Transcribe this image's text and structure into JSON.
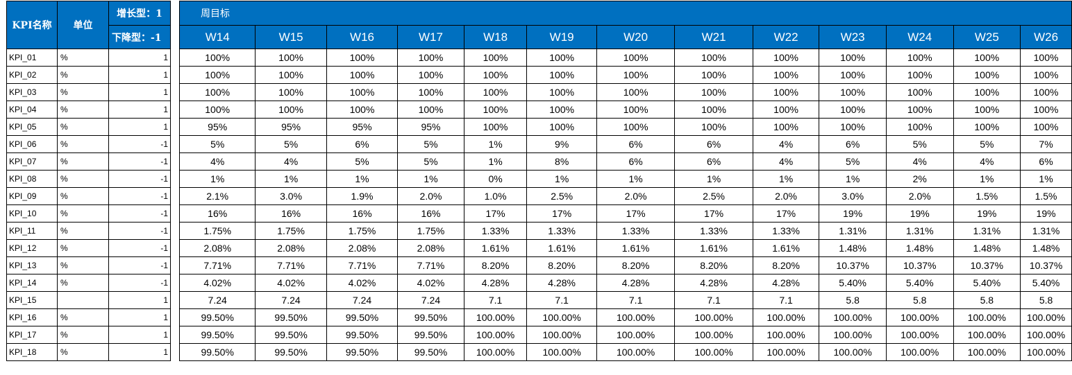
{
  "left_headers": {
    "kpi_name": "KPI名称",
    "unit": "单位",
    "type_up": "增长型：1",
    "type_down": "下降型：-1"
  },
  "weekly_target": {
    "group_title": "周目标",
    "weeks": [
      "W14",
      "W15",
      "W16",
      "W17",
      "W18",
      "W19",
      "W20",
      "W21",
      "W22",
      "W23",
      "W24",
      "W25",
      "W26"
    ]
  },
  "rows": [
    {
      "name": "KPI_01",
      "unit": "%",
      "type": "1",
      "values": [
        "100%",
        "100%",
        "100%",
        "100%",
        "100%",
        "100%",
        "100%",
        "100%",
        "100%",
        "100%",
        "100%",
        "100%",
        "100%"
      ]
    },
    {
      "name": "KPI_02",
      "unit": "%",
      "type": "1",
      "values": [
        "100%",
        "100%",
        "100%",
        "100%",
        "100%",
        "100%",
        "100%",
        "100%",
        "100%",
        "100%",
        "100%",
        "100%",
        "100%"
      ]
    },
    {
      "name": "KPI_03",
      "unit": "%",
      "type": "1",
      "values": [
        "100%",
        "100%",
        "100%",
        "100%",
        "100%",
        "100%",
        "100%",
        "100%",
        "100%",
        "100%",
        "100%",
        "100%",
        "100%"
      ]
    },
    {
      "name": "KPI_04",
      "unit": "%",
      "type": "1",
      "values": [
        "100%",
        "100%",
        "100%",
        "100%",
        "100%",
        "100%",
        "100%",
        "100%",
        "100%",
        "100%",
        "100%",
        "100%",
        "100%"
      ]
    },
    {
      "name": "KPI_05",
      "unit": "%",
      "type": "1",
      "values": [
        "95%",
        "95%",
        "95%",
        "95%",
        "100%",
        "100%",
        "100%",
        "100%",
        "100%",
        "100%",
        "100%",
        "100%",
        "100%"
      ]
    },
    {
      "name": "KPI_06",
      "unit": "%",
      "type": "-1",
      "values": [
        "5%",
        "5%",
        "6%",
        "5%",
        "1%",
        "9%",
        "6%",
        "6%",
        "4%",
        "6%",
        "5%",
        "5%",
        "7%"
      ]
    },
    {
      "name": "KPI_07",
      "unit": "%",
      "type": "-1",
      "values": [
        "4%",
        "4%",
        "5%",
        "5%",
        "1%",
        "8%",
        "6%",
        "6%",
        "4%",
        "5%",
        "4%",
        "4%",
        "6%"
      ]
    },
    {
      "name": "KPI_08",
      "unit": "%",
      "type": "-1",
      "values": [
        "1%",
        "1%",
        "1%",
        "1%",
        "0%",
        "1%",
        "1%",
        "1%",
        "1%",
        "1%",
        "2%",
        "1%",
        "1%"
      ]
    },
    {
      "name": "KPI_09",
      "unit": "%",
      "type": "-1",
      "values": [
        "2.1%",
        "3.0%",
        "1.9%",
        "2.0%",
        "1.0%",
        "2.5%",
        "2.0%",
        "2.5%",
        "2.0%",
        "3.0%",
        "2.0%",
        "1.5%",
        "1.5%"
      ]
    },
    {
      "name": "KPI_10",
      "unit": "%",
      "type": "-1",
      "values": [
        "16%",
        "16%",
        "16%",
        "16%",
        "17%",
        "17%",
        "17%",
        "17%",
        "17%",
        "19%",
        "19%",
        "19%",
        "19%"
      ]
    },
    {
      "name": "KPI_11",
      "unit": "%",
      "type": "-1",
      "values": [
        "1.75%",
        "1.75%",
        "1.75%",
        "1.75%",
        "1.33%",
        "1.33%",
        "1.33%",
        "1.33%",
        "1.33%",
        "1.31%",
        "1.31%",
        "1.31%",
        "1.31%"
      ]
    },
    {
      "name": "KPI_12",
      "unit": "%",
      "type": "-1",
      "values": [
        "2.08%",
        "2.08%",
        "2.08%",
        "2.08%",
        "1.61%",
        "1.61%",
        "1.61%",
        "1.61%",
        "1.61%",
        "1.48%",
        "1.48%",
        "1.48%",
        "1.48%"
      ]
    },
    {
      "name": "KPI_13",
      "unit": "%",
      "type": "-1",
      "values": [
        "7.71%",
        "7.71%",
        "7.71%",
        "7.71%",
        "8.20%",
        "8.20%",
        "8.20%",
        "8.20%",
        "8.20%",
        "10.37%",
        "10.37%",
        "10.37%",
        "10.37%"
      ]
    },
    {
      "name": "KPI_14",
      "unit": "%",
      "type": "-1",
      "values": [
        "4.02%",
        "4.02%",
        "4.02%",
        "4.02%",
        "4.28%",
        "4.28%",
        "4.28%",
        "4.28%",
        "4.28%",
        "5.40%",
        "5.40%",
        "5.40%",
        "5.40%"
      ]
    },
    {
      "name": "KPI_15",
      "unit": "",
      "type": "1",
      "values": [
        "7.24",
        "7.24",
        "7.24",
        "7.24",
        "7.1",
        "7.1",
        "7.1",
        "7.1",
        "7.1",
        "5.8",
        "5.8",
        "5.8",
        "5.8"
      ]
    },
    {
      "name": "KPI_16",
      "unit": "%",
      "type": "1",
      "values": [
        "99.50%",
        "99.50%",
        "99.50%",
        "99.50%",
        "100.00%",
        "100.00%",
        "100.00%",
        "100.00%",
        "100.00%",
        "100.00%",
        "100.00%",
        "100.00%",
        "100.00%"
      ]
    },
    {
      "name": "KPI_17",
      "unit": "%",
      "type": "1",
      "values": [
        "99.50%",
        "99.50%",
        "99.50%",
        "99.50%",
        "100.00%",
        "100.00%",
        "100.00%",
        "100.00%",
        "100.00%",
        "100.00%",
        "100.00%",
        "100.00%",
        "100.00%"
      ]
    },
    {
      "name": "KPI_18",
      "unit": "%",
      "type": "1",
      "values": [
        "99.50%",
        "99.50%",
        "99.50%",
        "99.50%",
        "100.00%",
        "100.00%",
        "100.00%",
        "100.00%",
        "100.00%",
        "100.00%",
        "100.00%",
        "100.00%",
        "100.00%"
      ]
    }
  ]
}
